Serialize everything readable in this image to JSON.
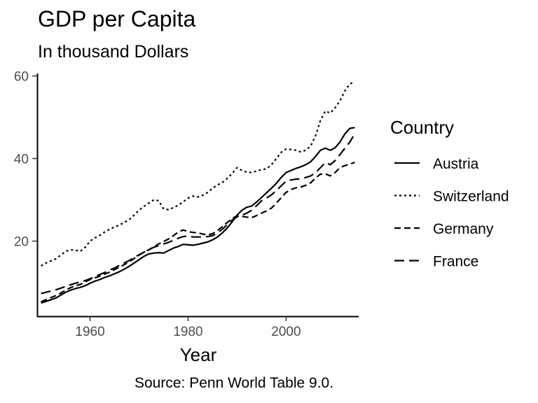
{
  "chart_data": {
    "type": "line",
    "title": "GDP per Capita",
    "subtitle": "In thousand Dollars",
    "caption": "Source: Penn World Table 9.0.",
    "xlabel": "Year",
    "ylabel": "",
    "xlim": [
      1949.2,
      2014.8
    ],
    "ylim": [
      1.8,
      60.6
    ],
    "x_ticks": [
      1960,
      1980,
      2000
    ],
    "y_ticks": [
      20,
      40,
      60
    ],
    "grid": false,
    "legend": {
      "title": "Country",
      "position": "right"
    },
    "x": [
      1950,
      1951,
      1952,
      1953,
      1954,
      1955,
      1956,
      1957,
      1958,
      1959,
      1960,
      1961,
      1962,
      1963,
      1964,
      1965,
      1966,
      1967,
      1968,
      1969,
      1970,
      1971,
      1972,
      1973,
      1974,
      1975,
      1976,
      1977,
      1978,
      1979,
      1980,
      1981,
      1982,
      1983,
      1984,
      1985,
      1986,
      1987,
      1988,
      1989,
      1990,
      1991,
      1992,
      1993,
      1994,
      1995,
      1996,
      1997,
      1998,
      1999,
      2000,
      2001,
      2002,
      2003,
      2004,
      2005,
      2006,
      2007,
      2008,
      2009,
      2010,
      2011,
      2012,
      2013,
      2014
    ],
    "series": [
      {
        "name": "Austria",
        "dash": "solid",
        "values": [
          5.0,
          5.4,
          5.8,
          6.2,
          6.9,
          7.6,
          8.1,
          8.5,
          8.8,
          9.2,
          9.8,
          10.3,
          10.7,
          11.2,
          11.6,
          12.1,
          12.6,
          13.2,
          13.9,
          14.7,
          15.5,
          16.3,
          16.9,
          17.1,
          17.2,
          17.1,
          17.7,
          18.3,
          18.7,
          19.2,
          19.1,
          19.0,
          19.2,
          19.5,
          19.8,
          20.3,
          21.0,
          22.0,
          23.2,
          24.7,
          26.3,
          27.5,
          28.2,
          28.5,
          29.5,
          30.6,
          31.7,
          32.8,
          34.0,
          35.4,
          36.6,
          37.1,
          37.6,
          38.0,
          38.5,
          39.2,
          40.5,
          42.0,
          42.5,
          42.0,
          42.6,
          44.0,
          46.0,
          47.3,
          47.5
        ]
      },
      {
        "name": "Switzerland",
        "dash": "dotted",
        "values": [
          14.0,
          14.7,
          15.2,
          15.7,
          16.6,
          17.5,
          17.9,
          17.8,
          17.5,
          18.5,
          20.0,
          20.8,
          21.4,
          22.2,
          22.9,
          23.4,
          23.9,
          24.5,
          25.2,
          26.3,
          27.5,
          28.4,
          29.2,
          30.0,
          29.8,
          27.8,
          27.6,
          28.1,
          28.7,
          29.5,
          30.4,
          30.9,
          30.7,
          31.1,
          31.8,
          32.8,
          33.6,
          34.2,
          35.2,
          36.4,
          37.8,
          37.1,
          36.7,
          36.6,
          37.0,
          37.3,
          37.5,
          38.5,
          40.0,
          41.5,
          42.3,
          42.2,
          42.0,
          41.6,
          42.0,
          43.0,
          45.5,
          49.2,
          51.5,
          51.0,
          52.3,
          54.0,
          56.4,
          58.1,
          58.5
        ]
      },
      {
        "name": "Germany",
        "dash": "dashed",
        "values": [
          5.3,
          5.8,
          6.3,
          6.8,
          7.4,
          8.1,
          8.7,
          9.2,
          9.5,
          10.1,
          10.7,
          11.1,
          11.5,
          12.0,
          12.5,
          13.1,
          13.7,
          14.3,
          15.0,
          15.8,
          16.6,
          17.3,
          17.9,
          18.6,
          19.3,
          19.9,
          20.5,
          21.3,
          22.2,
          22.7,
          22.3,
          22.1,
          22.0,
          21.7,
          21.5,
          21.8,
          22.6,
          23.5,
          24.5,
          25.5,
          26.1,
          26.0,
          25.8,
          25.7,
          26.2,
          26.8,
          27.3,
          28.0,
          29.2,
          30.5,
          31.8,
          32.5,
          32.9,
          33.1,
          33.5,
          34.1,
          35.3,
          36.2,
          36.3,
          35.8,
          36.6,
          37.8,
          38.3,
          38.6,
          39.1
        ]
      },
      {
        "name": "France",
        "dash": "longdash",
        "values": [
          7.3,
          7.6,
          7.9,
          8.2,
          8.6,
          9.0,
          9.4,
          9.8,
          10.1,
          10.4,
          10.9,
          11.4,
          11.9,
          12.4,
          13.0,
          13.5,
          14.1,
          14.7,
          15.3,
          16.0,
          16.7,
          17.3,
          17.9,
          18.5,
          18.9,
          19.3,
          19.7,
          20.2,
          20.7,
          21.1,
          21.2,
          21.0,
          21.0,
          21.0,
          21.1,
          21.3,
          22.0,
          22.9,
          24.0,
          25.1,
          25.9,
          26.3,
          26.8,
          27.5,
          28.6,
          29.8,
          30.4,
          31.2,
          32.2,
          33.4,
          34.5,
          34.8,
          35.0,
          35.1,
          35.4,
          35.8,
          36.5,
          37.8,
          39.0,
          38.5,
          39.5,
          41.0,
          42.5,
          44.0,
          46.0
        ]
      }
    ]
  }
}
